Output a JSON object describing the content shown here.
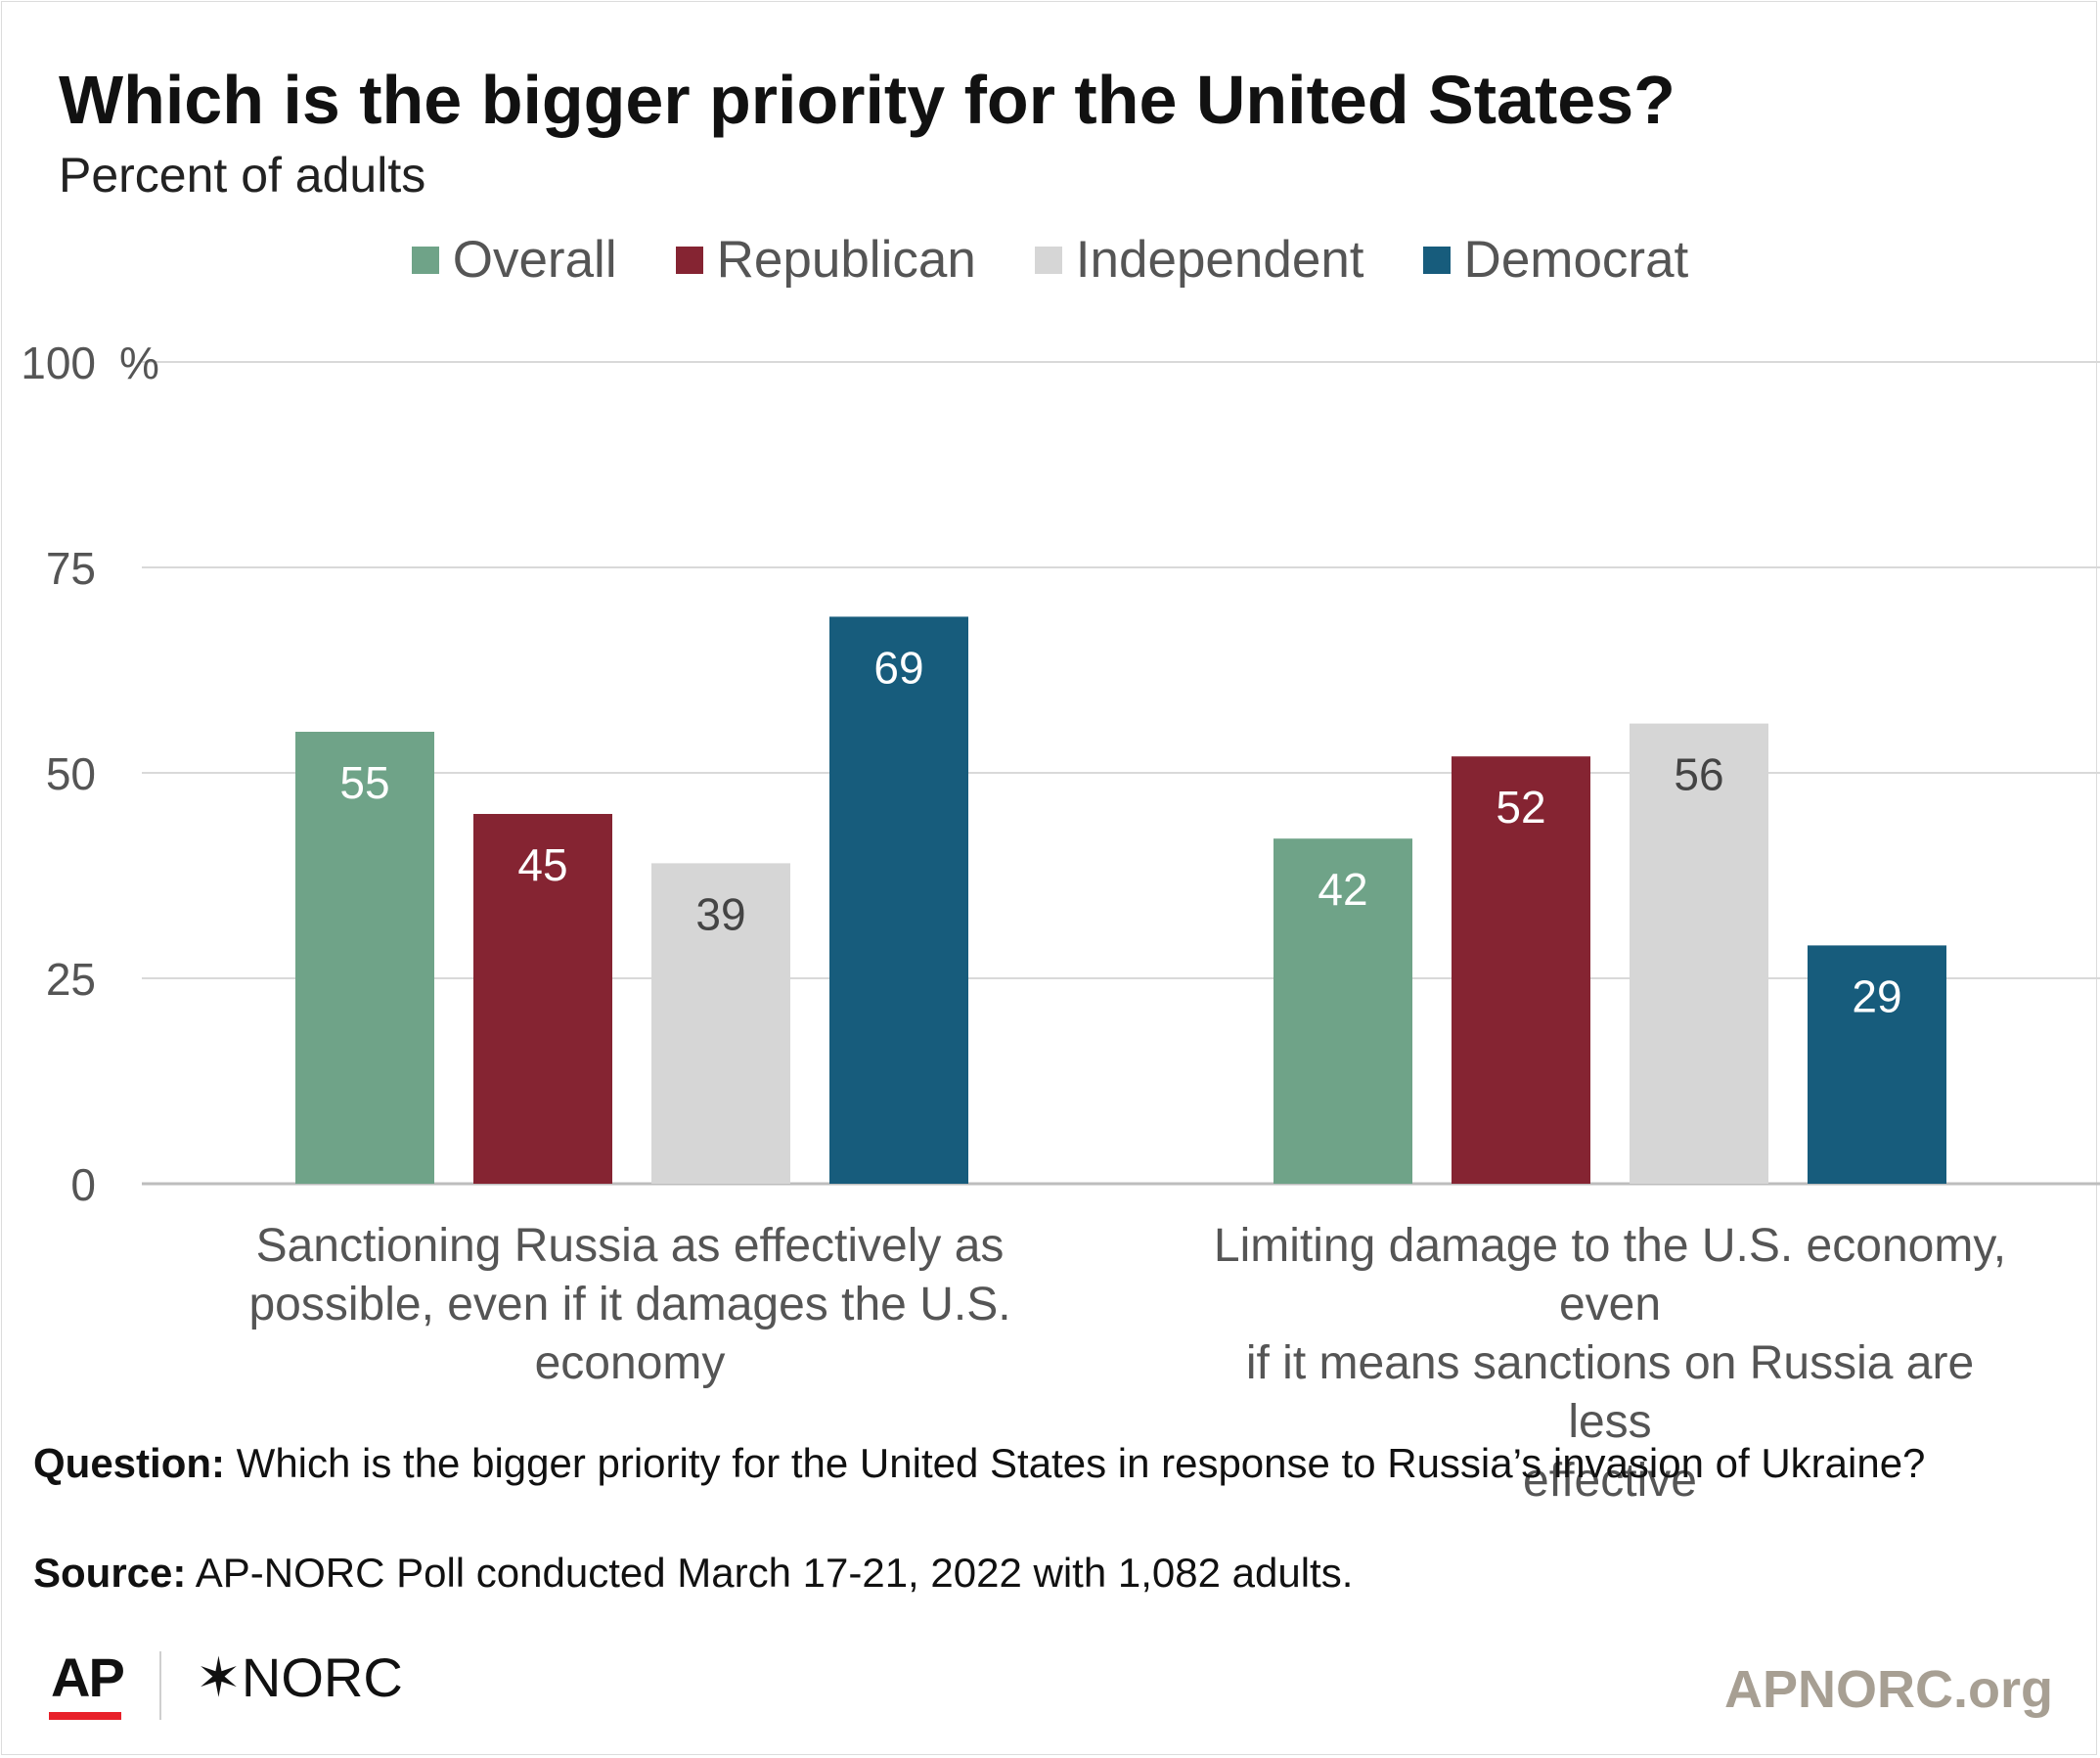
{
  "header": {
    "title": "Which is the bigger priority for the United States?",
    "subtitle": "Percent of adults"
  },
  "colors": {
    "overall": "#6fa388",
    "republican": "#852432",
    "independent": "#d6d6d6",
    "democrat": "#175c7c",
    "gridline": "#d9d9d9",
    "axis_text": "#555555"
  },
  "chart_data": {
    "type": "bar",
    "title": "Which is the bigger priority for the United States?",
    "subtitle": "Percent of adults",
    "categories": [
      "Sanctioning Russia as effectively as possible, even if it damages the U.S. economy",
      "Limiting damage to the U.S. economy, even if it means sanctions on Russia are less effective"
    ],
    "category_lines": [
      [
        "Sanctioning Russia as effectively as",
        "possible, even if it damages the U.S.",
        "economy"
      ],
      [
        "Limiting damage to the U.S. economy, even",
        "if it means sanctions on Russia are less",
        "effective"
      ]
    ],
    "series": [
      {
        "name": "Overall",
        "values": [
          55,
          42
        ],
        "color": "#6fa388",
        "label_color": "#ffffff"
      },
      {
        "name": "Republican",
        "values": [
          45,
          52
        ],
        "color": "#852432",
        "label_color": "#ffffff"
      },
      {
        "name": "Independent",
        "values": [
          39,
          56
        ],
        "color": "#d6d6d6",
        "label_color": "#444444"
      },
      {
        "name": "Democrat",
        "values": [
          69,
          29
        ],
        "color": "#175c7c",
        "label_color": "#ffffff"
      }
    ],
    "ylim": [
      0,
      100
    ],
    "yticks": [
      0,
      25,
      50,
      75,
      100
    ],
    "ytick_labels": [
      "0",
      "25",
      "50",
      "75",
      "100"
    ],
    "yunit": "%",
    "xlabel": "",
    "ylabel": "",
    "grid": true,
    "legend_position": "top-center"
  },
  "footer": {
    "question_label": "Question:",
    "question_text": "Which is the bigger priority for the United States in response to Russia’s invasion of Ukraine?",
    "source_label": "Source:",
    "source_text": "AP-NORC Poll conducted March 17-21, 2022 with 1,082 adults.",
    "logo_ap": "AP",
    "logo_norc": "✶NORC",
    "site": "APNORC.org"
  }
}
